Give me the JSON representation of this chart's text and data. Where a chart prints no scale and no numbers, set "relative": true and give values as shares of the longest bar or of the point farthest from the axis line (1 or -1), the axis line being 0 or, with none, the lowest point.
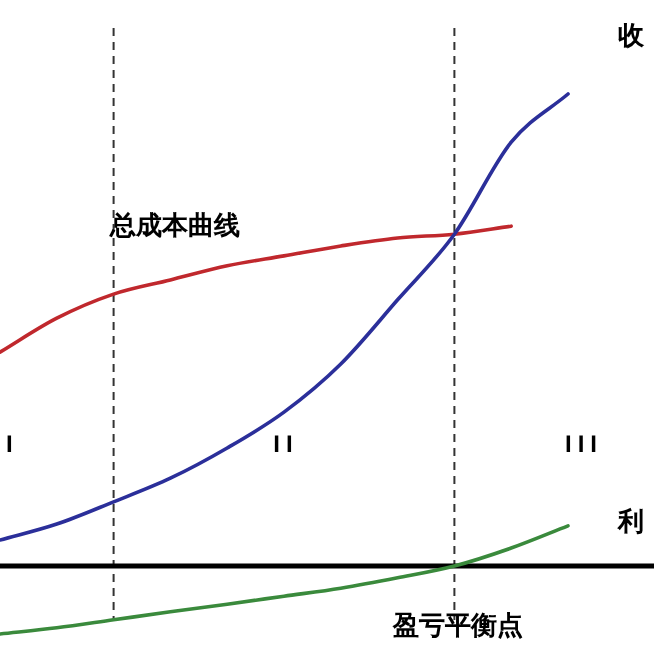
{
  "chart_data": {
    "type": "line",
    "relative": true,
    "categories": [
      null,
      null,
      null,
      null,
      null,
      null,
      null,
      null,
      null,
      null,
      null,
      null
    ],
    "series": [
      {
        "name": "总成本曲线",
        "color": "#c0282d",
        "values": [
          0.453,
          0.525,
          0.576,
          0.606,
          0.636,
          0.657,
          0.678,
          0.695,
          0.703,
          0.72,
          null,
          null
        ]
      },
      {
        "name": "收",
        "color": "#2b2f9a",
        "values": [
          0.055,
          0.089,
          0.136,
          0.186,
          0.25,
          0.326,
          0.428,
          0.564,
          0.703,
          0.898,
          1,
          null
        ]
      },
      {
        "name": "利",
        "color": "#3a8a3c",
        "values": [
          -0.144,
          -0.131,
          -0.114,
          -0.097,
          -0.081,
          -0.064,
          -0.047,
          -0.025,
          0,
          0.038,
          0.085,
          null
        ]
      }
    ],
    "annotations": [
      "I",
      "II",
      "III",
      "盈亏平衡点"
    ],
    "marker": "none",
    "line_style": "solid"
  }
}
